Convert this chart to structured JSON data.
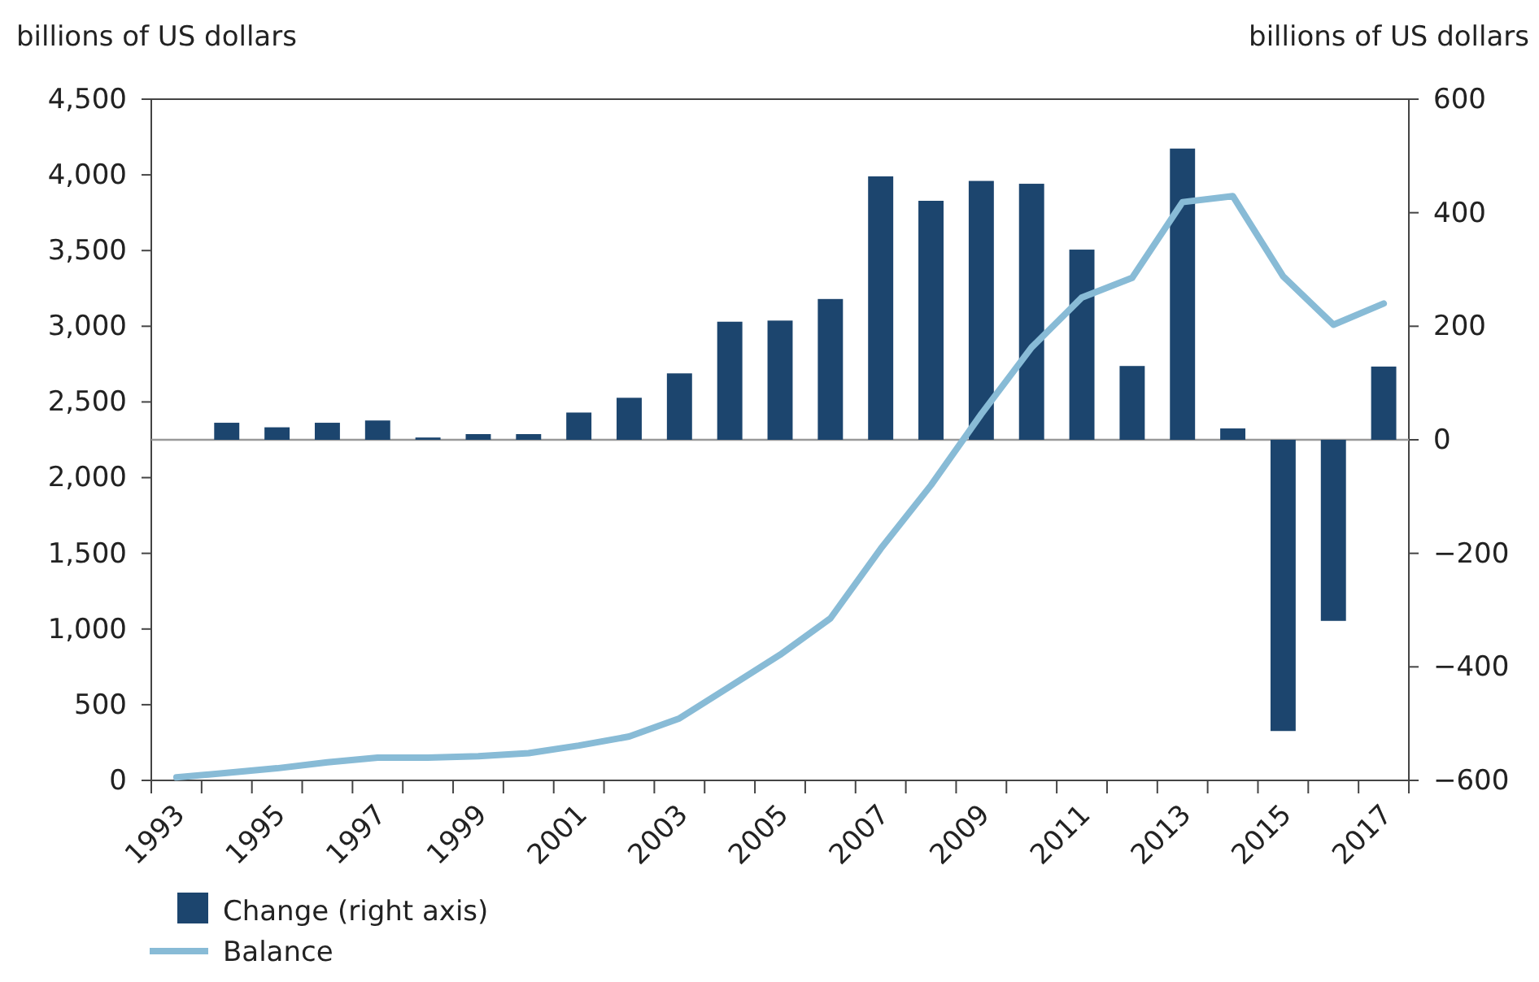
{
  "chart_data": {
    "type": "bar",
    "ylabel": "billions of US dollars",
    "y2label": "billions of US dollars",
    "categories": [
      "1993",
      null,
      "1995",
      null,
      "1997",
      null,
      "1999",
      null,
      "2001",
      null,
      "2003",
      null,
      "2005",
      null,
      "2007",
      null,
      "2009",
      null,
      "2011",
      null,
      "2013",
      null,
      "2015",
      null,
      "2017"
    ],
    "series": [
      {
        "name": "Change (right axis)",
        "axis": "y2",
        "color": "#1c456e",
        "values": [
          null,
          30,
          22,
          30,
          34,
          4,
          10,
          10,
          48,
          74,
          117,
          208,
          210,
          248,
          464,
          421,
          456,
          451,
          335,
          130,
          513,
          20,
          -513,
          -319,
          129
        ]
      },
      {
        "name": "Balance",
        "type": "line",
        "axis": "y",
        "color": "#88bbd6",
        "values": [
          20,
          50,
          80,
          120,
          150,
          150,
          160,
          180,
          230,
          290,
          410,
          620,
          830,
          1070,
          1530,
          1950,
          2420,
          2860,
          3190,
          3320,
          3820,
          3860,
          3330,
          3010,
          3150
        ]
      }
    ],
    "ylim": [
      0,
      4500
    ],
    "yticks": [
      {
        "value": 0,
        "label": "0"
      },
      {
        "value": 500,
        "label": "500"
      },
      {
        "value": 1000,
        "label": "1,000"
      },
      {
        "value": 1500,
        "label": "1,500"
      },
      {
        "value": 2000,
        "label": "2,000"
      },
      {
        "value": 2500,
        "label": "2,500"
      },
      {
        "value": 3000,
        "label": "3,000"
      },
      {
        "value": 3500,
        "label": "3,500"
      },
      {
        "value": 4000,
        "label": "4,000"
      },
      {
        "value": 4500,
        "label": "4,500"
      }
    ],
    "y2lim": [
      -600,
      600
    ],
    "y2ticks": [
      {
        "value": -600,
        "label": "−600"
      },
      {
        "value": -400,
        "label": "−400"
      },
      {
        "value": -200,
        "label": "−200"
      },
      0,
      200,
      400,
      600
    ],
    "ref_lines": [
      {
        "axis": "y2",
        "value": 0,
        "color": "#999999"
      }
    ],
    "legend": "bottom left",
    "grid": false
  }
}
